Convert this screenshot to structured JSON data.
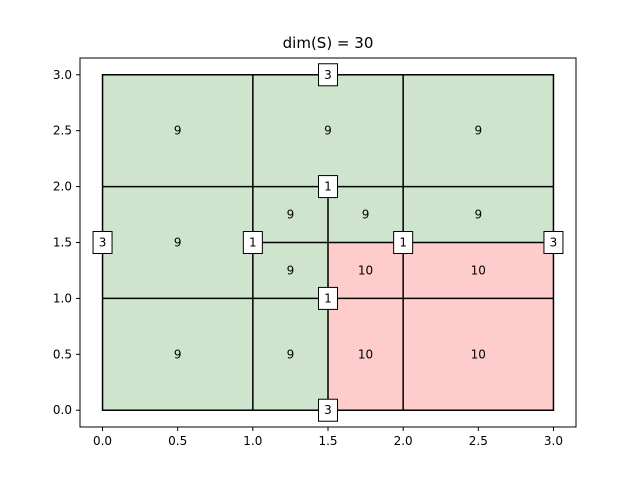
{
  "chart_data": {
    "type": "heatmap",
    "title": "dim(S) = 30",
    "xlabel": "",
    "ylabel": "",
    "xlim": [
      -0.15,
      3.15
    ],
    "ylim": [
      -0.15,
      3.15
    ],
    "grid": false,
    "xticks": [
      0.0,
      0.5,
      1.0,
      1.5,
      2.0,
      2.5,
      3.0
    ],
    "yticks": [
      0.0,
      0.5,
      1.0,
      1.5,
      2.0,
      2.5,
      3.0
    ],
    "tick_labels": {
      "x": [
        "0.0",
        "0.5",
        "1.0",
        "1.5",
        "2.0",
        "2.5",
        "3.0"
      ],
      "y": [
        "0.0",
        "0.5",
        "1.0",
        "1.5",
        "2.0",
        "2.5",
        "3.0"
      ]
    },
    "colors": {
      "green": "#cfe4cc",
      "red": "#ffcccc",
      "line": "#000000"
    },
    "regions": [
      {
        "x0": 0,
        "x1": 1,
        "y0": 2,
        "y1": 3,
        "value": "9",
        "color": "green"
      },
      {
        "x0": 1,
        "x1": 2,
        "y0": 2,
        "y1": 3,
        "value": "9",
        "color": "green"
      },
      {
        "x0": 2,
        "x1": 3,
        "y0": 2,
        "y1": 3,
        "value": "9",
        "color": "green"
      },
      {
        "x0": 0,
        "x1": 1,
        "y0": 1,
        "y1": 2,
        "value": "9",
        "color": "green"
      },
      {
        "x0": 1,
        "x1": 1.5,
        "y0": 1.5,
        "y1": 2,
        "value": "9",
        "color": "green"
      },
      {
        "x0": 1.5,
        "x1": 2,
        "y0": 1.5,
        "y1": 2,
        "value": "9",
        "color": "green"
      },
      {
        "x0": 2,
        "x1": 3,
        "y0": 1.5,
        "y1": 2,
        "value": "9",
        "color": "green"
      },
      {
        "x0": 1,
        "x1": 1.5,
        "y0": 1,
        "y1": 1.5,
        "value": "9",
        "color": "green"
      },
      {
        "x0": 1.5,
        "x1": 2,
        "y0": 1,
        "y1": 1.5,
        "value": "10",
        "color": "red"
      },
      {
        "x0": 2,
        "x1": 3,
        "y0": 1,
        "y1": 1.5,
        "value": "10",
        "color": "red"
      },
      {
        "x0": 0,
        "x1": 1,
        "y0": 0,
        "y1": 1,
        "value": "9",
        "color": "green"
      },
      {
        "x0": 1,
        "x1": 1.5,
        "y0": 0,
        "y1": 1,
        "value": "9",
        "color": "green"
      },
      {
        "x0": 1.5,
        "x1": 2,
        "y0": 0,
        "y1": 1,
        "value": "10",
        "color": "red"
      },
      {
        "x0": 2,
        "x1": 3,
        "y0": 0,
        "y1": 1,
        "value": "10",
        "color": "red"
      }
    ],
    "lines": [
      {
        "x0": 0,
        "y0": 1,
        "x1": 3,
        "y1": 1
      },
      {
        "x0": 0,
        "y0": 2,
        "x1": 3,
        "y1": 2
      },
      {
        "x0": 1,
        "y0": 1.5,
        "x1": 3,
        "y1": 1.5
      },
      {
        "x0": 1,
        "y0": 0,
        "x1": 1,
        "y1": 3
      },
      {
        "x0": 2,
        "y0": 0,
        "x1": 2,
        "y1": 3
      },
      {
        "x0": 1.5,
        "y0": 0,
        "x1": 1.5,
        "y1": 2
      }
    ],
    "boundary_labels": [
      {
        "x": 1.5,
        "y": 3.0,
        "text": "3"
      },
      {
        "x": 1.5,
        "y": 0.0,
        "text": "3"
      },
      {
        "x": 0.0,
        "y": 1.5,
        "text": "3"
      },
      {
        "x": 3.0,
        "y": 1.5,
        "text": "3"
      },
      {
        "x": 1.5,
        "y": 2.0,
        "text": "1"
      },
      {
        "x": 1.5,
        "y": 1.0,
        "text": "1"
      },
      {
        "x": 1.0,
        "y": 1.5,
        "text": "1"
      },
      {
        "x": 2.0,
        "y": 1.5,
        "text": "1"
      }
    ]
  }
}
